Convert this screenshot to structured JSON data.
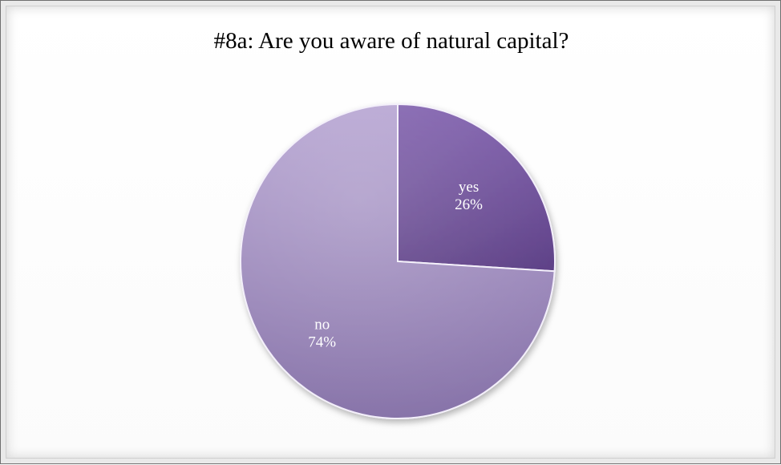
{
  "chart_data": {
    "type": "pie",
    "title": "#8a: Are you aware of natural capital?",
    "slices": [
      {
        "label": "yes",
        "value": 26,
        "display": "26%",
        "color": "#6a4a96"
      },
      {
        "label": "no",
        "value": 74,
        "display": "74%",
        "color": "#9c88bc"
      }
    ],
    "start_angle_deg": 0,
    "direction": "clockwise",
    "legend": "none"
  }
}
